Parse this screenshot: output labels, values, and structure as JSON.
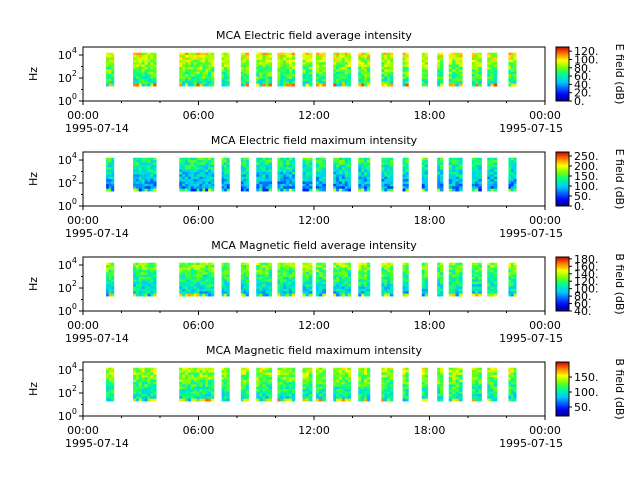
{
  "chart_data": [
    {
      "type": "heatmap",
      "title": "MCA  Electric field average intensity",
      "ylabel": "Hz",
      "y_scale": "log",
      "ylim": [
        1,
        50000
      ],
      "y_ticks": [
        {
          "value": 1,
          "base": "10",
          "exp": "0"
        },
        {
          "value": 100,
          "base": "10",
          "exp": "2"
        },
        {
          "value": 10000,
          "base": "10",
          "exp": "4"
        }
      ],
      "x_ticks": [
        "00:00",
        "06:00",
        "12:00",
        "18:00",
        "00:00"
      ],
      "x_dates": [
        "1995-07-14",
        "1995-07-15"
      ],
      "colorbar": {
        "label": "E field (dB)",
        "range": [
          0,
          130
        ],
        "ticks": [
          "0.",
          "20.",
          "40.",
          "60.",
          "80.",
          "100.",
          "120."
        ]
      },
      "level": 0.55,
      "data_intervals_hours": [
        [
          1.2,
          1.6
        ],
        [
          2.6,
          3.8
        ],
        [
          5.0,
          6.8
        ],
        [
          7.2,
          7.6
        ],
        [
          8.2,
          8.6
        ],
        [
          9.0,
          9.8
        ],
        [
          10.1,
          11.0
        ],
        [
          11.4,
          11.9
        ],
        [
          12.1,
          12.6
        ],
        [
          13.0,
          13.9
        ],
        [
          14.3,
          14.9
        ],
        [
          15.5,
          16.1
        ],
        [
          16.6,
          16.9
        ],
        [
          17.6,
          17.9
        ],
        [
          18.4,
          18.7
        ],
        [
          19.0,
          19.7
        ],
        [
          20.2,
          20.7
        ],
        [
          21.0,
          21.5
        ],
        [
          22.1,
          22.5
        ]
      ]
    },
    {
      "type": "heatmap",
      "title": "MCA  Electric field maximum intensity",
      "ylabel": "Hz",
      "y_scale": "log",
      "ylim": [
        1,
        50000
      ],
      "y_ticks": [
        {
          "value": 1,
          "base": "10",
          "exp": "0"
        },
        {
          "value": 100,
          "base": "10",
          "exp": "2"
        },
        {
          "value": 10000,
          "base": "10",
          "exp": "4"
        }
      ],
      "x_ticks": [
        "00:00",
        "06:00",
        "12:00",
        "18:00",
        "00:00"
      ],
      "x_dates": [
        "1995-07-14",
        "1995-07-15"
      ],
      "colorbar": {
        "label": "E field (dB)",
        "range": [
          0,
          270
        ],
        "ticks": [
          "0.",
          "50.",
          "100.",
          "150.",
          "200.",
          "250."
        ]
      },
      "level": 0.35,
      "data_intervals_hours": [
        [
          1.2,
          1.6
        ],
        [
          2.6,
          3.8
        ],
        [
          5.0,
          6.8
        ],
        [
          7.2,
          7.6
        ],
        [
          8.2,
          8.6
        ],
        [
          9.0,
          9.8
        ],
        [
          10.1,
          11.0
        ],
        [
          11.4,
          11.9
        ],
        [
          12.1,
          12.6
        ],
        [
          13.0,
          13.9
        ],
        [
          14.3,
          14.9
        ],
        [
          15.5,
          16.1
        ],
        [
          16.6,
          16.9
        ],
        [
          17.6,
          17.9
        ],
        [
          18.4,
          18.7
        ],
        [
          19.0,
          19.7
        ],
        [
          20.2,
          20.7
        ],
        [
          21.0,
          21.5
        ],
        [
          22.1,
          22.5
        ]
      ]
    },
    {
      "type": "heatmap",
      "title": "MCA  Magnetic field average intensity",
      "ylabel": "Hz",
      "y_scale": "log",
      "ylim": [
        1,
        50000
      ],
      "y_ticks": [
        {
          "value": 1,
          "base": "10",
          "exp": "0"
        },
        {
          "value": 100,
          "base": "10",
          "exp": "2"
        },
        {
          "value": 10000,
          "base": "10",
          "exp": "4"
        }
      ],
      "x_ticks": [
        "00:00",
        "06:00",
        "12:00",
        "18:00",
        "00:00"
      ],
      "x_dates": [
        "1995-07-14",
        "1995-07-15"
      ],
      "colorbar": {
        "label": "B field (dB)",
        "range": [
          40,
          185
        ],
        "ticks": [
          "40.",
          "60.",
          "80.",
          "100.",
          "120.",
          "140.",
          "160.",
          "180."
        ]
      },
      "level": 0.45,
      "data_intervals_hours": [
        [
          1.2,
          1.6
        ],
        [
          2.6,
          3.8
        ],
        [
          5.0,
          6.8
        ],
        [
          7.2,
          7.6
        ],
        [
          8.2,
          8.6
        ],
        [
          9.0,
          9.8
        ],
        [
          10.1,
          11.0
        ],
        [
          11.4,
          11.9
        ],
        [
          12.1,
          12.6
        ],
        [
          13.0,
          13.9
        ],
        [
          14.3,
          14.9
        ],
        [
          15.5,
          16.1
        ],
        [
          16.6,
          16.9
        ],
        [
          17.6,
          17.9
        ],
        [
          18.4,
          18.7
        ],
        [
          19.0,
          19.7
        ],
        [
          20.2,
          20.7
        ],
        [
          21.0,
          21.5
        ],
        [
          22.1,
          22.5
        ]
      ]
    },
    {
      "type": "heatmap",
      "title": "MCA  Magnetic field maximum intensity",
      "ylabel": "Hz",
      "y_scale": "log",
      "ylim": [
        1,
        50000
      ],
      "y_ticks": [
        {
          "value": 1,
          "base": "10",
          "exp": "0"
        },
        {
          "value": 100,
          "base": "10",
          "exp": "2"
        },
        {
          "value": 10000,
          "base": "10",
          "exp": "4"
        }
      ],
      "x_ticks": [
        "00:00",
        "06:00",
        "12:00",
        "18:00",
        "00:00"
      ],
      "x_dates": [
        "1995-07-14",
        "1995-07-15"
      ],
      "colorbar": {
        "label": "B field (dB)",
        "range": [
          20,
          200
        ],
        "ticks": [
          "50.",
          "100.",
          "150."
        ]
      },
      "level": 0.5,
      "data_intervals_hours": [
        [
          1.2,
          1.6
        ],
        [
          2.6,
          3.8
        ],
        [
          5.0,
          6.8
        ],
        [
          7.2,
          7.6
        ],
        [
          8.2,
          8.6
        ],
        [
          9.0,
          9.8
        ],
        [
          10.1,
          11.0
        ],
        [
          11.4,
          11.9
        ],
        [
          12.1,
          12.6
        ],
        [
          13.0,
          13.9
        ],
        [
          14.3,
          14.9
        ],
        [
          15.5,
          16.1
        ],
        [
          16.6,
          16.9
        ],
        [
          17.6,
          17.9
        ],
        [
          18.4,
          18.7
        ],
        [
          19.0,
          19.7
        ],
        [
          20.2,
          20.7
        ],
        [
          21.0,
          21.5
        ],
        [
          22.1,
          22.5
        ]
      ]
    }
  ]
}
